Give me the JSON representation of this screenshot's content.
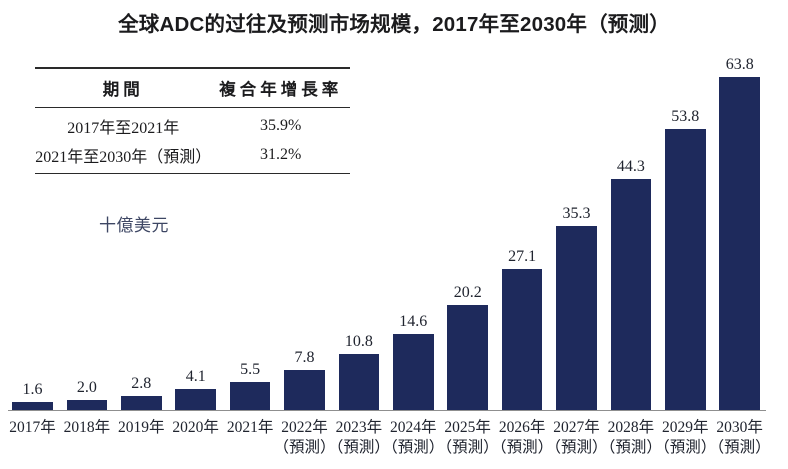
{
  "title": "全球ADC的过往及预测市场规模，2017年至2030年（预测）",
  "unit_label": "十億美元",
  "cagr_table": {
    "headers": {
      "period": "期間",
      "cagr": "複合年增長率"
    },
    "rows": [
      {
        "period": "2017年至2021年",
        "cagr": "35.9%"
      },
      {
        "period": "2021年至2030年（預測）",
        "cagr": "31.2%"
      }
    ]
  },
  "chart_data": {
    "type": "bar",
    "title": "全球ADC的过往及预测市场规模，2017年至2030年（预测）",
    "categories": [
      "2017年",
      "2018年",
      "2019年",
      "2020年",
      "2021年",
      "2022年（預測）",
      "2023年（預測）",
      "2024年（預測）",
      "2025年（預測）",
      "2026年（預測）",
      "2027年（預測）",
      "2028年（預測）",
      "2029年（預測）",
      "2030年（預測）"
    ],
    "values": [
      1.6,
      2.0,
      2.8,
      4.1,
      5.5,
      7.8,
      10.8,
      14.6,
      20.2,
      27.1,
      35.3,
      44.3,
      53.8,
      63.8
    ],
    "value_labels": [
      "1.6",
      "2.0",
      "2.8",
      "4.1",
      "5.5",
      "7.8",
      "10.8",
      "14.6",
      "20.2",
      "27.1",
      "35.3",
      "44.3",
      "53.8",
      "63.8"
    ],
    "xlabel": "",
    "ylabel": "十億美元",
    "ylim": [
      0,
      70
    ],
    "grid": false,
    "legend": null,
    "data_labels": true,
    "bar_color": "#1e2a5c",
    "axis_line_color": "#8f8f8f"
  }
}
